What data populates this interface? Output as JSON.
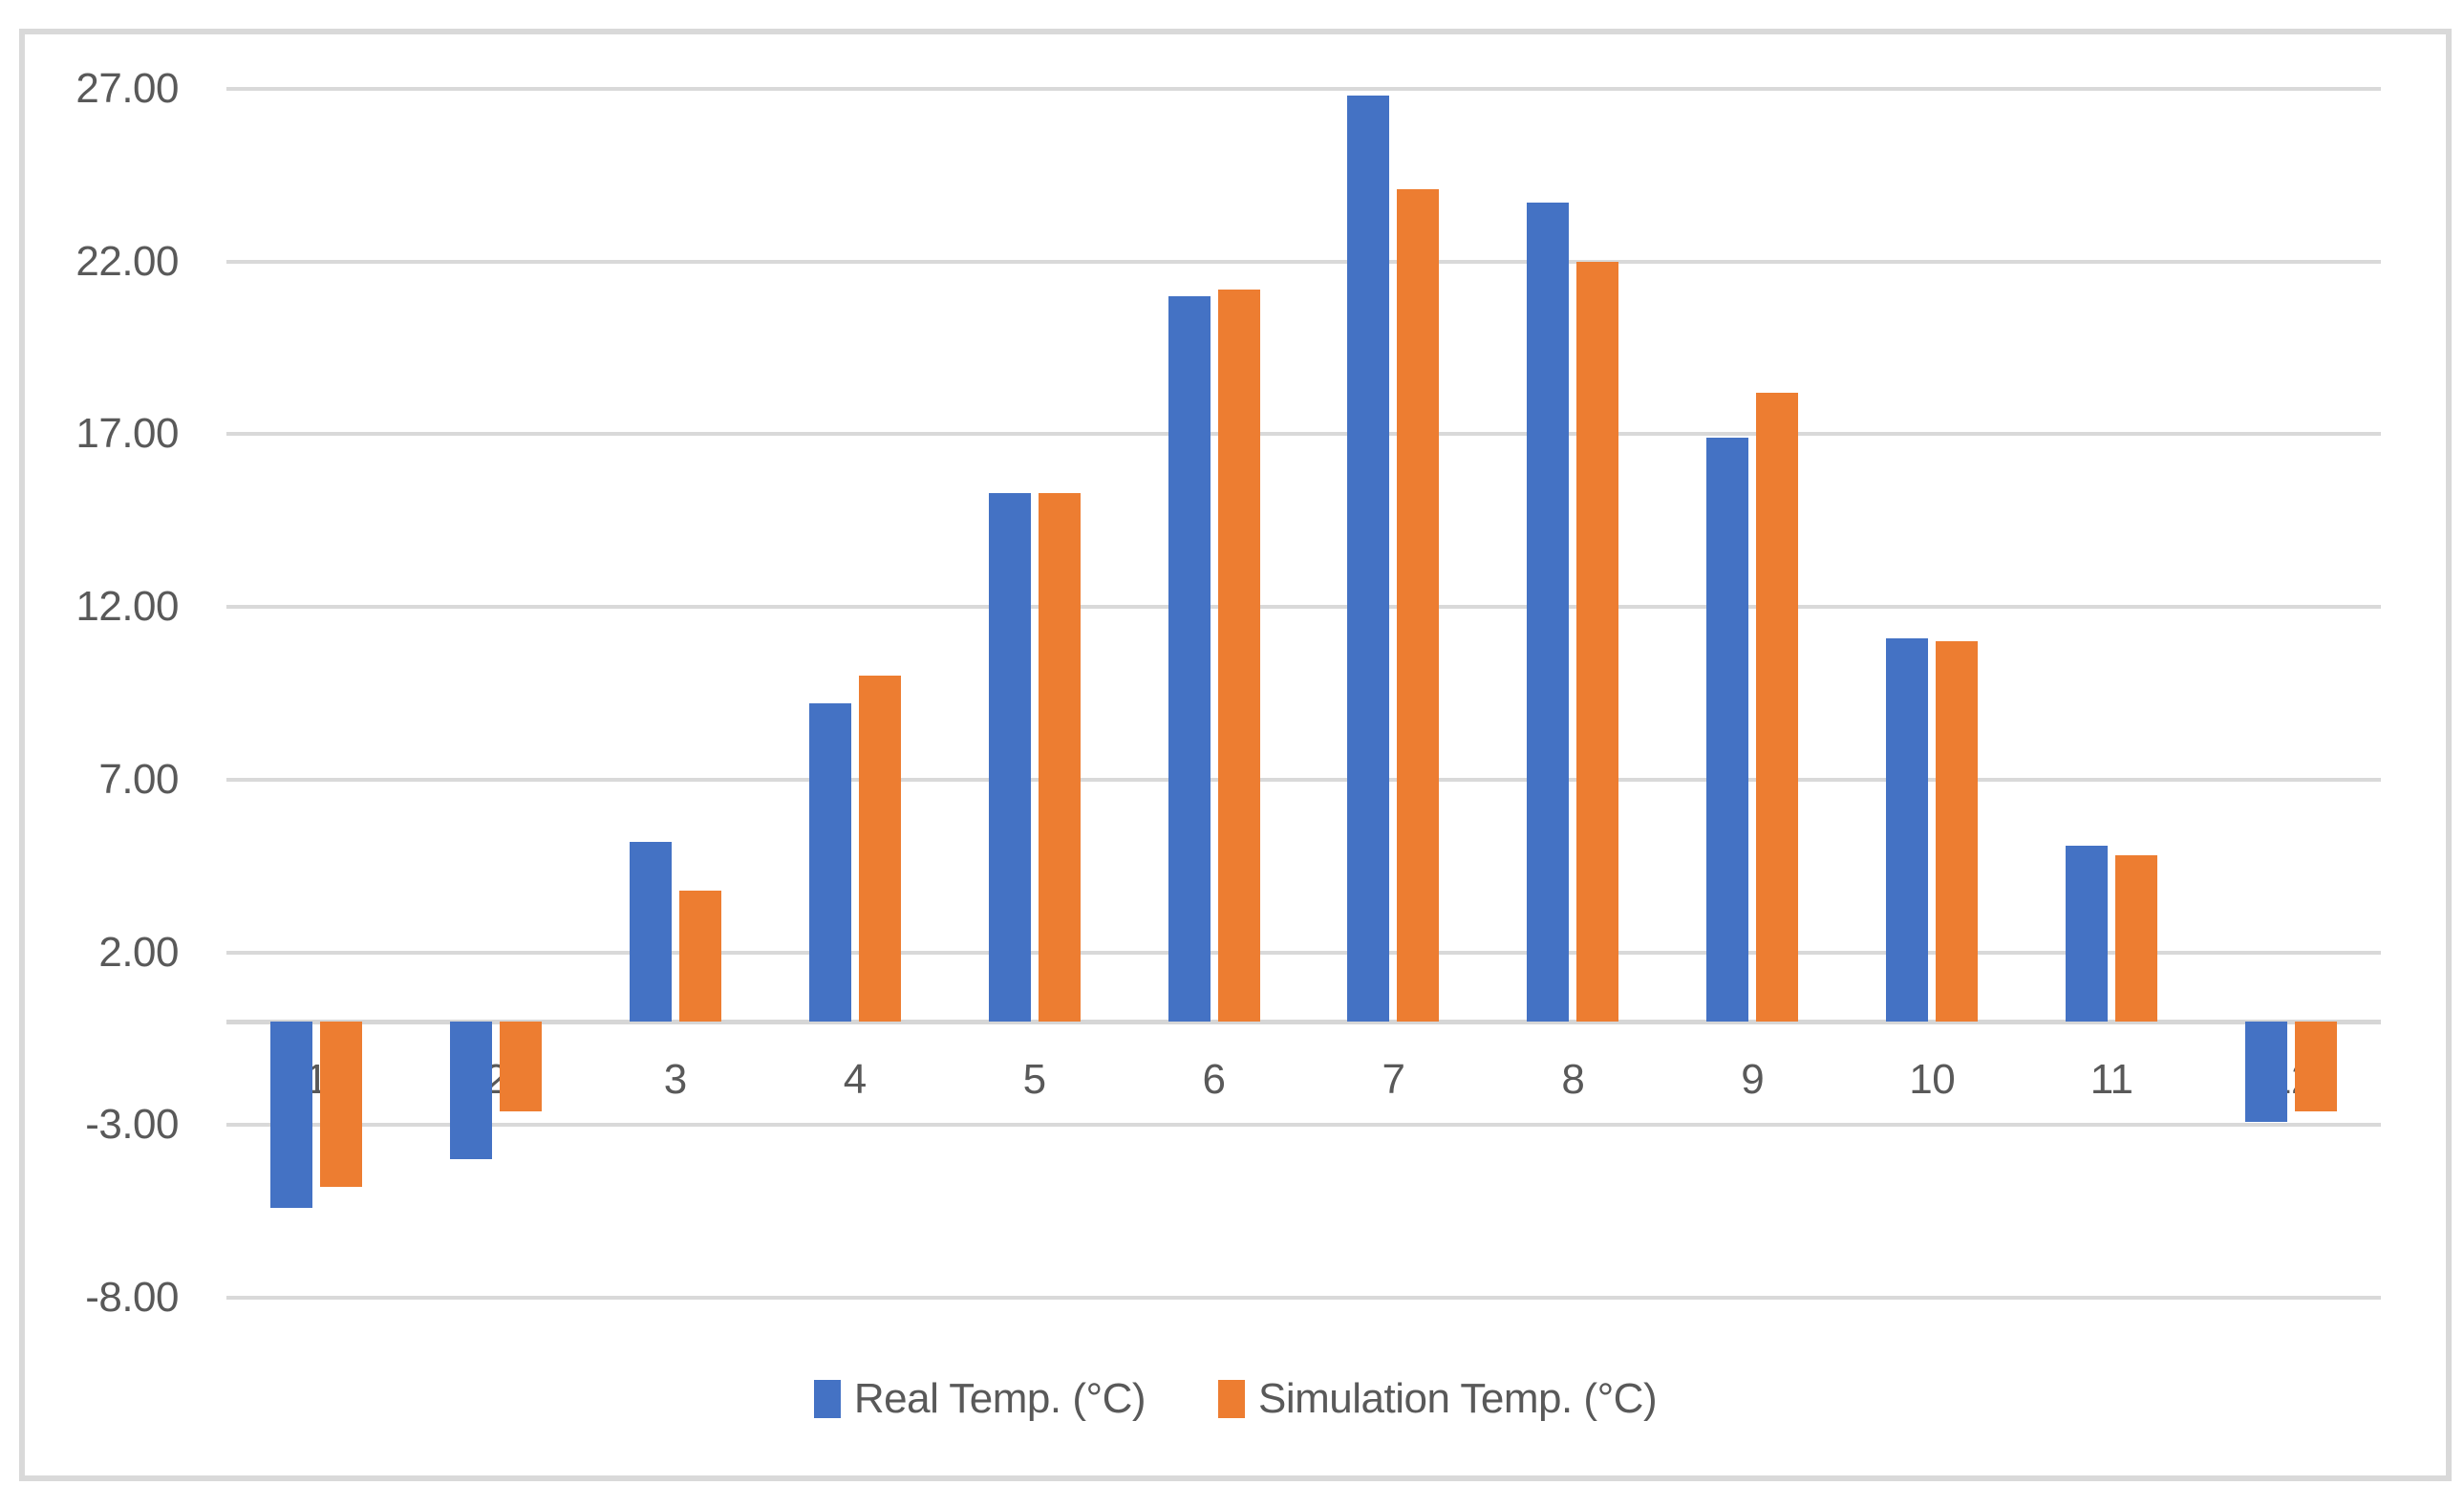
{
  "chart_data": {
    "type": "bar",
    "title": "",
    "xlabel": "",
    "ylabel": "",
    "categories": [
      "1",
      "2",
      "3",
      "4",
      "5",
      "6",
      "7",
      "8",
      "9",
      "10",
      "11",
      "12"
    ],
    "series": [
      {
        "name": "Real Temp. (°C)",
        "color": "#4472C4",
        "values": [
          -5.4,
          -4.0,
          5.2,
          9.2,
          15.3,
          21.0,
          26.8,
          23.7,
          16.9,
          11.1,
          5.1,
          -2.9
        ]
      },
      {
        "name": "Simulation Temp. (°C)",
        "color": "#ED7D31",
        "values": [
          -4.8,
          -2.6,
          3.8,
          10.0,
          15.3,
          21.2,
          24.1,
          22.0,
          18.2,
          11.0,
          4.8,
          -2.6
        ]
      }
    ],
    "y_tick_labels": [
      "27.00",
      "22.00",
      "17.00",
      "12.00",
      "7.00",
      "2.00",
      "-3.00",
      "-8.00"
    ],
    "ylim": [
      -8,
      27
    ],
    "y_tick_step": 5,
    "grid": true,
    "legend_position": "bottom-center",
    "colors": {
      "gridline": "#D9D9D9",
      "axis_line": "#D6D6D6",
      "frame_border": "#D9D9D9",
      "tick_text": "#595959",
      "background": "#FFFFFF"
    }
  }
}
